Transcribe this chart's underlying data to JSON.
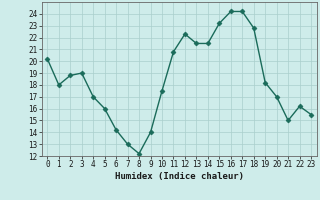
{
  "xlabel": "Humidex (Indice chaleur)",
  "x": [
    0,
    1,
    2,
    3,
    4,
    5,
    6,
    7,
    8,
    9,
    10,
    11,
    12,
    13,
    14,
    15,
    16,
    17,
    18,
    19,
    20,
    21,
    22,
    23
  ],
  "y": [
    20.2,
    18.0,
    18.8,
    19.0,
    17.0,
    16.0,
    14.2,
    13.0,
    12.2,
    14.0,
    17.5,
    20.8,
    22.3,
    21.5,
    21.5,
    23.2,
    24.2,
    24.2,
    22.8,
    18.2,
    17.0,
    15.0,
    16.2,
    15.5
  ],
  "line_color": "#1a6b5a",
  "marker_size": 2.5,
  "linewidth": 1.0,
  "bg_color": "#ceecea",
  "grid_color": "#aacfcc",
  "ylim": [
    12,
    25
  ],
  "yticks": [
    12,
    13,
    14,
    15,
    16,
    17,
    18,
    19,
    20,
    21,
    22,
    23,
    24
  ],
  "tick_fontsize": 5.5,
  "xlabel_fontsize": 6.5
}
